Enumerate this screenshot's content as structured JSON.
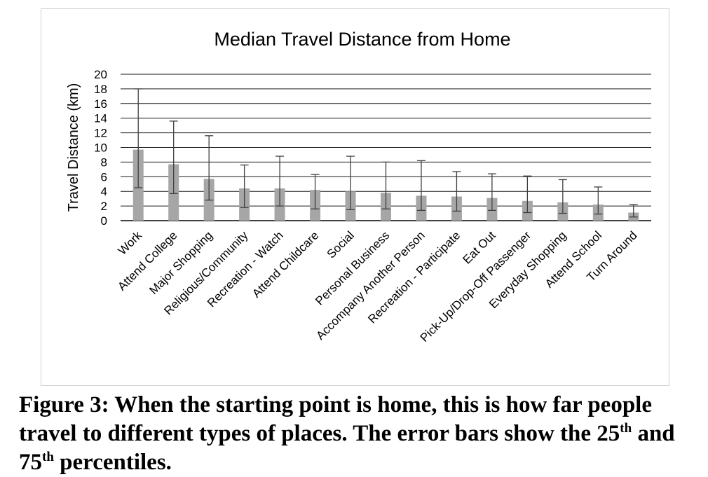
{
  "chart_data": {
    "type": "bar",
    "title": "Median Travel Distance from Home",
    "xlabel": "",
    "ylabel": "Travel Distance (km)",
    "ylim": [
      0,
      20
    ],
    "yticks": [
      0,
      2,
      4,
      6,
      8,
      10,
      12,
      14,
      16,
      18,
      20
    ],
    "grid": true,
    "legend": "none",
    "bar_color": "#a6a6a6",
    "errorbar_color": "#404040",
    "categories": [
      "Work",
      "Attend College",
      "Major Shopping",
      "Religious/Community",
      "Recreation - Watch",
      "Attend Childcare",
      "Social",
      "Personal Business",
      "Accompany Another Person",
      "Recreation - Participate",
      "Eat Out",
      "Pick-Up/Drop-Off Passenger",
      "Everyday Shopping",
      "Attend School",
      "Turn Around"
    ],
    "values": [
      9.7,
      7.7,
      5.7,
      4.4,
      4.4,
      4.2,
      4.0,
      3.8,
      3.4,
      3.3,
      3.1,
      2.7,
      2.5,
      2.2,
      1.1
    ],
    "error_low": [
      4.5,
      3.7,
      2.8,
      1.8,
      2.0,
      1.6,
      1.5,
      1.6,
      1.4,
      1.3,
      1.4,
      1.1,
      1.0,
      0.9,
      0.5
    ],
    "error_high": [
      18.0,
      13.6,
      11.6,
      7.6,
      8.8,
      6.3,
      8.8,
      8.0,
      8.2,
      6.7,
      6.4,
      6.1,
      5.6,
      4.6,
      2.2
    ]
  },
  "caption": {
    "label": "Figure 3:",
    "text_1": " When the starting point is home, this is how far people travel to different types of places. The error bars show the 25",
    "sup_1": "th",
    "text_2": " and 75",
    "sup_2": "th",
    "text_3": " percentiles."
  }
}
